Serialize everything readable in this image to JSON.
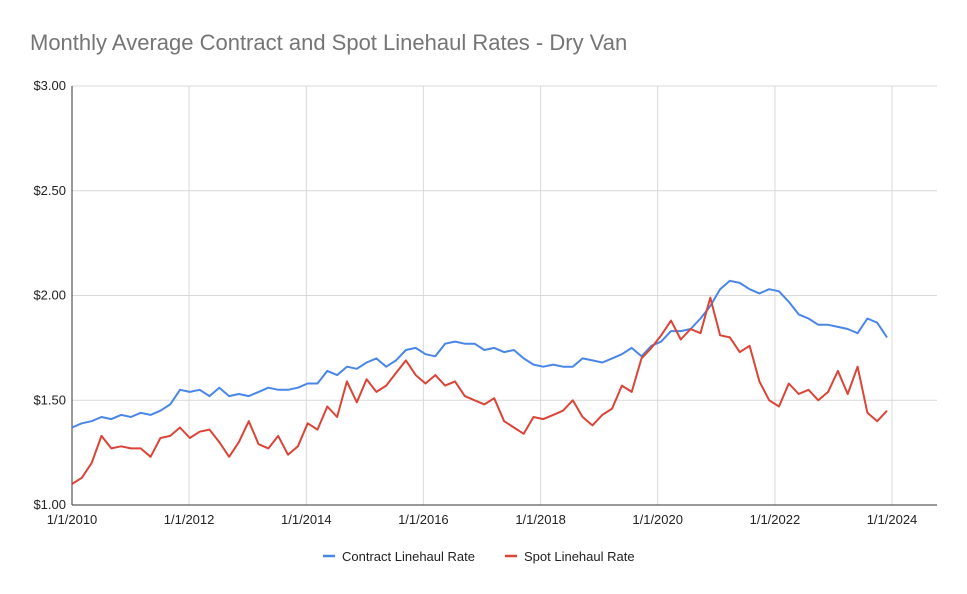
{
  "chart_data": {
    "type": "line",
    "title": "Monthly Average Contract and Spot Linehaul Rates - Dry Van",
    "xlabel": "",
    "ylabel": "",
    "ylim": [
      1.0,
      3.0
    ],
    "xlim": [
      "2010-01-01",
      "2024-06-01"
    ],
    "y_ticks": [
      "$1.00",
      "$1.50",
      "$2.00",
      "$2.50",
      "$3.00"
    ],
    "x_ticks": [
      "1/1/2010",
      "1/1/2012",
      "1/1/2014",
      "1/1/2016",
      "1/1/2018",
      "1/1/2020",
      "1/1/2022",
      "1/1/2024"
    ],
    "grid": true,
    "legend_position": "bottom",
    "series": [
      {
        "name": "Contract Linehaul Rate",
        "color": "#4a86e8",
        "points": [
          [
            "2010-01",
            1.37
          ],
          [
            "2010-03",
            1.39
          ],
          [
            "2010-05",
            1.4
          ],
          [
            "2010-07",
            1.42
          ],
          [
            "2010-09",
            1.41
          ],
          [
            "2010-11",
            1.43
          ],
          [
            "2011-01",
            1.42
          ],
          [
            "2011-03",
            1.44
          ],
          [
            "2011-05",
            1.43
          ],
          [
            "2011-07",
            1.45
          ],
          [
            "2011-10",
            1.48
          ],
          [
            "2012-01",
            1.55
          ],
          [
            "2012-03",
            1.54
          ],
          [
            "2012-06",
            1.55
          ],
          [
            "2012-08",
            1.52
          ],
          [
            "2012-10",
            1.56
          ],
          [
            "2013-01",
            1.52
          ],
          [
            "2013-04",
            1.53
          ],
          [
            "2013-07",
            1.52
          ],
          [
            "2013-10",
            1.54
          ],
          [
            "2014-01",
            1.56
          ],
          [
            "2014-04",
            1.55
          ],
          [
            "2014-07",
            1.55
          ],
          [
            "2014-10",
            1.56
          ],
          [
            "2015-01",
            1.58
          ],
          [
            "2015-04",
            1.58
          ],
          [
            "2015-07",
            1.64
          ],
          [
            "2015-09",
            1.62
          ],
          [
            "2015-11",
            1.66
          ],
          [
            "2016-01",
            1.65
          ],
          [
            "2016-03",
            1.68
          ],
          [
            "2016-05",
            1.7
          ],
          [
            "2016-07",
            1.66
          ],
          [
            "2016-09",
            1.69
          ],
          [
            "2016-11",
            1.74
          ],
          [
            "2017-01",
            1.75
          ],
          [
            "2017-03",
            1.72
          ],
          [
            "2017-05",
            1.71
          ],
          [
            "2017-07",
            1.77
          ],
          [
            "2017-09",
            1.78
          ],
          [
            "2017-11",
            1.77
          ],
          [
            "2018-01",
            1.77
          ],
          [
            "2018-03",
            1.74
          ],
          [
            "2018-05",
            1.75
          ],
          [
            "2018-07",
            1.73
          ],
          [
            "2018-09",
            1.74
          ],
          [
            "2018-11",
            1.7
          ],
          [
            "2019-01",
            1.67
          ],
          [
            "2019-03",
            1.66
          ],
          [
            "2019-05",
            1.67
          ],
          [
            "2019-07",
            1.66
          ],
          [
            "2019-09",
            1.66
          ],
          [
            "2019-11",
            1.7
          ],
          [
            "2020-01",
            1.69
          ],
          [
            "2020-03",
            1.68
          ],
          [
            "2020-05",
            1.7
          ],
          [
            "2020-07",
            1.72
          ],
          [
            "2020-09",
            1.75
          ],
          [
            "2020-11",
            1.71
          ],
          [
            "2021-01",
            1.76
          ],
          [
            "2021-03",
            1.78
          ],
          [
            "2021-05",
            1.83
          ],
          [
            "2021-07",
            1.83
          ],
          [
            "2021-09",
            1.84
          ],
          [
            "2021-11",
            1.89
          ],
          [
            "2022-01",
            1.95
          ],
          [
            "2022-03",
            2.03
          ],
          [
            "2022-05",
            2.07
          ],
          [
            "2022-07",
            2.06
          ],
          [
            "2022-09",
            2.03
          ],
          [
            "2022-11",
            2.01
          ],
          [
            "2023-01",
            2.03
          ],
          [
            "2023-03",
            2.02
          ],
          [
            "2023-05",
            1.97
          ],
          [
            "2023-07",
            1.91
          ],
          [
            "2023-09",
            1.89
          ],
          [
            "2023-11",
            1.86
          ],
          [
            "2024-01",
            1.86
          ],
          [
            "2024-03",
            1.85
          ],
          [
            "2024-05",
            1.84
          ],
          [
            "2024-07",
            1.82
          ],
          [
            "2024-09",
            1.89
          ],
          [
            "2024-11",
            1.87
          ],
          [
            "2025-01",
            1.8
          ]
        ]
      },
      {
        "name": "Spot Linehaul Rate",
        "color": "#db4437",
        "points": [
          [
            "2010-01",
            1.1
          ],
          [
            "2010-03",
            1.13
          ],
          [
            "2010-05",
            1.2
          ],
          [
            "2010-07",
            1.33
          ],
          [
            "2010-09",
            1.27
          ],
          [
            "2010-11",
            1.28
          ],
          [
            "2011-01",
            1.27
          ],
          [
            "2011-03",
            1.27
          ],
          [
            "2011-05",
            1.23
          ],
          [
            "2011-07",
            1.32
          ],
          [
            "2011-10",
            1.33
          ],
          [
            "2012-01",
            1.37
          ],
          [
            "2012-03",
            1.32
          ],
          [
            "2012-06",
            1.35
          ],
          [
            "2012-08",
            1.36
          ],
          [
            "2012-10",
            1.3
          ],
          [
            "2013-01",
            1.23
          ],
          [
            "2013-04",
            1.3
          ],
          [
            "2013-07",
            1.4
          ],
          [
            "2013-10",
            1.29
          ],
          [
            "2014-01",
            1.27
          ],
          [
            "2014-04",
            1.33
          ],
          [
            "2014-07",
            1.24
          ],
          [
            "2014-10",
            1.28
          ],
          [
            "2015-01",
            1.39
          ],
          [
            "2015-04",
            1.36
          ],
          [
            "2015-07",
            1.47
          ],
          [
            "2015-09",
            1.42
          ],
          [
            "2015-11",
            1.59
          ],
          [
            "2016-01",
            1.49
          ],
          [
            "2016-03",
            1.6
          ],
          [
            "2016-05",
            1.54
          ],
          [
            "2016-07",
            1.57
          ],
          [
            "2016-09",
            1.63
          ],
          [
            "2016-11",
            1.69
          ],
          [
            "2017-01",
            1.62
          ],
          [
            "2017-03",
            1.58
          ],
          [
            "2017-05",
            1.62
          ],
          [
            "2017-07",
            1.57
          ],
          [
            "2017-09",
            1.59
          ],
          [
            "2017-11",
            1.52
          ],
          [
            "2018-01",
            1.5
          ],
          [
            "2018-03",
            1.48
          ],
          [
            "2018-05",
            1.51
          ],
          [
            "2018-07",
            1.4
          ],
          [
            "2018-09",
            1.37
          ],
          [
            "2018-11",
            1.34
          ],
          [
            "2019-01",
            1.42
          ],
          [
            "2019-03",
            1.41
          ],
          [
            "2019-05",
            1.43
          ],
          [
            "2019-07",
            1.45
          ],
          [
            "2019-09",
            1.5
          ],
          [
            "2019-11",
            1.42
          ],
          [
            "2020-01",
            1.38
          ],
          [
            "2020-03",
            1.43
          ],
          [
            "2020-05",
            1.46
          ],
          [
            "2020-07",
            1.57
          ],
          [
            "2020-09",
            1.54
          ],
          [
            "2020-11",
            1.7
          ],
          [
            "2021-01",
            1.75
          ],
          [
            "2021-03",
            1.81
          ],
          [
            "2021-05",
            1.88
          ],
          [
            "2021-07",
            1.79
          ],
          [
            "2021-09",
            1.84
          ],
          [
            "2021-11",
            1.82
          ],
          [
            "2022-01",
            1.99
          ],
          [
            "2022-03",
            1.81
          ],
          [
            "2022-05",
            1.8
          ],
          [
            "2022-07",
            1.73
          ],
          [
            "2022-09",
            1.76
          ],
          [
            "2022-11",
            1.59
          ],
          [
            "2023-01",
            1.5
          ],
          [
            "2023-03",
            1.47
          ],
          [
            "2023-05",
            1.58
          ],
          [
            "2023-07",
            1.53
          ],
          [
            "2023-09",
            1.55
          ],
          [
            "2023-11",
            1.5
          ],
          [
            "2024-01",
            1.54
          ],
          [
            "2024-03",
            1.64
          ],
          [
            "2024-05",
            1.53
          ],
          [
            "2024-07",
            1.66
          ],
          [
            "2024-09",
            1.44
          ],
          [
            "2024-11",
            1.4
          ],
          [
            "2025-01",
            1.45
          ]
        ]
      }
    ]
  }
}
